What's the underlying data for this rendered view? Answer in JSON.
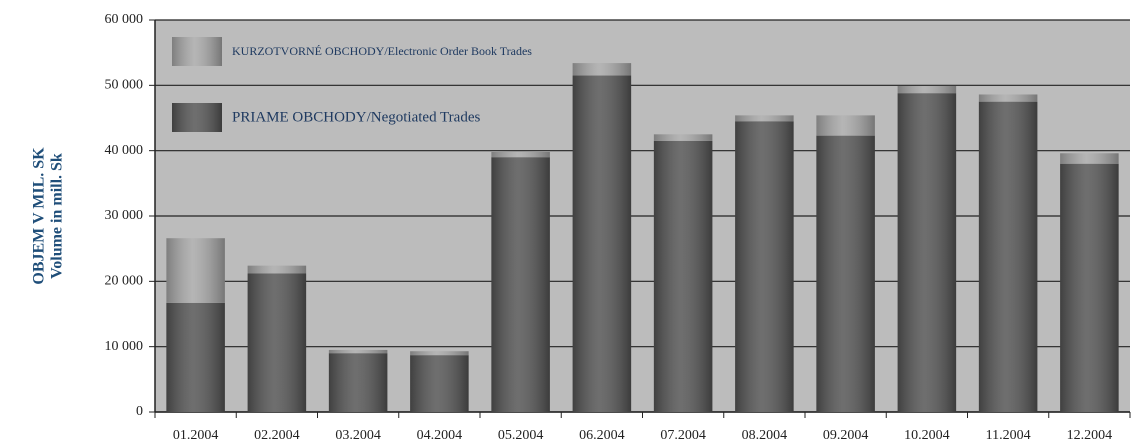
{
  "chart_data": {
    "type": "stacked_bar",
    "y_label_lines": [
      "OBJEM V MIL. SK",
      "Volume in mill. Sk"
    ],
    "categories": [
      "01.2004",
      "02.2004",
      "03.2004",
      "04.2004",
      "05.2004",
      "06.2004",
      "07.2004",
      "08.2004",
      "09.2004",
      "10.2004",
      "11.2004",
      "12.2004"
    ],
    "series": [
      {
        "name": "PRIAME OBCHODY/Negotiated Trades",
        "color": "#555555",
        "values": [
          16700,
          21200,
          9000,
          8700,
          39000,
          51500,
          41500,
          44500,
          42300,
          48800,
          47500,
          38000
        ]
      },
      {
        "name": "KURZOTVORNÉ OBCHODY/Electronic Order Book Trades",
        "color": "#a8a8a8",
        "values": [
          9900,
          1200,
          500,
          600,
          800,
          1900,
          1000,
          900,
          3100,
          1100,
          1100,
          1600
        ]
      }
    ],
    "ylim": [
      0,
      60000
    ],
    "yticks": [
      0,
      {
        "value": 10000,
        "label": "10 000"
      },
      {
        "value": 20000,
        "label": "20 000"
      },
      {
        "value": 30000,
        "label": "30 000"
      },
      {
        "value": 40000,
        "label": "40 000"
      },
      {
        "value": 50000,
        "label": "50 000"
      },
      {
        "value": 60000,
        "label": "60 000"
      }
    ],
    "grid": true
  }
}
